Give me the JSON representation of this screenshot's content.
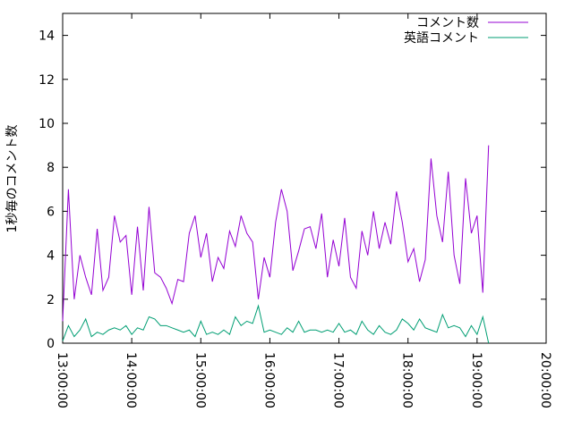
{
  "chart_data": {
    "type": "line",
    "y_label": "1秒毎のコメント数",
    "x": [
      13,
      13.083,
      13.167,
      13.25,
      13.333,
      13.417,
      13.5,
      13.583,
      13.667,
      13.75,
      13.833,
      13.917,
      14,
      14.083,
      14.167,
      14.25,
      14.333,
      14.417,
      14.5,
      14.583,
      14.667,
      14.75,
      14.833,
      14.917,
      15,
      15.083,
      15.167,
      15.25,
      15.333,
      15.417,
      15.5,
      15.583,
      15.667,
      15.75,
      15.833,
      15.917,
      16,
      16.083,
      16.167,
      16.25,
      16.333,
      16.417,
      16.5,
      16.583,
      16.667,
      16.75,
      16.833,
      16.917,
      17,
      17.083,
      17.167,
      17.25,
      17.333,
      17.417,
      17.5,
      17.583,
      17.667,
      17.75,
      17.833,
      17.917,
      18,
      18.083,
      18.167,
      18.25,
      18.333,
      18.417,
      18.5,
      18.583,
      18.667,
      18.75,
      18.833,
      18.917,
      19,
      19.083,
      19.167
    ],
    "series": [
      {
        "name": "コメント数",
        "color": "#9400d3",
        "values": [
          1.0,
          7,
          2,
          4,
          3,
          2.2,
          5.2,
          2.4,
          3,
          5.8,
          4.6,
          4.9,
          2.2,
          5.3,
          2.4,
          6.2,
          3.2,
          3,
          2.5,
          1.8,
          2.9,
          2.8,
          5,
          5.8,
          3.9,
          5,
          2.8,
          3.9,
          3.4,
          5.1,
          4.4,
          5.8,
          5,
          4.6,
          2.0,
          3.9,
          3,
          5.5,
          7,
          6,
          3.3,
          4.2,
          5.2,
          5.3,
          4.3,
          5.9,
          3,
          4.7,
          3.5,
          5.7,
          3,
          2.5,
          5.1,
          4.0,
          6.0,
          4.3,
          5.5,
          4.5,
          6.9,
          5.5,
          3.7,
          4.3,
          2.8,
          3.8,
          8.4,
          5.8,
          4.6,
          7.8,
          4,
          2.7,
          7.5,
          5,
          5.8,
          2.3,
          9.0
        ]
      },
      {
        "name": "英語コメント",
        "color": "#009e73",
        "values": [
          0.1,
          0.8,
          0.3,
          0.6,
          1.1,
          0.3,
          0.5,
          0.4,
          0.6,
          0.7,
          0.6,
          0.8,
          0.4,
          0.7,
          0.6,
          1.2,
          1.1,
          0.8,
          0.8,
          0.7,
          0.6,
          0.5,
          0.6,
          0.3,
          1.0,
          0.4,
          0.5,
          0.4,
          0.6,
          0.4,
          1.2,
          0.8,
          1.0,
          0.9,
          1.7,
          0.5,
          0.6,
          0.5,
          0.4,
          0.7,
          0.5,
          1.0,
          0.5,
          0.6,
          0.6,
          0.5,
          0.6,
          0.5,
          0.9,
          0.5,
          0.6,
          0.4,
          1.0,
          0.6,
          0.4,
          0.8,
          0.5,
          0.4,
          0.6,
          1.1,
          0.9,
          0.6,
          1.1,
          0.7,
          0.6,
          0.5,
          1.3,
          0.7,
          0.8,
          0.7,
          0.3,
          0.8,
          0.4,
          1.2,
          0
        ]
      }
    ],
    "xlim": [
      13,
      20
    ],
    "xticks": [
      {
        "value": 13,
        "label": "13:00:00"
      },
      {
        "value": 14,
        "label": "14:00:00"
      },
      {
        "value": 15,
        "label": "15:00:00"
      },
      {
        "value": 16,
        "label": "16:00:00"
      },
      {
        "value": 17,
        "label": "17:00:00"
      },
      {
        "value": 18,
        "label": "18:00:00"
      },
      {
        "value": 19,
        "label": "19:00:00"
      },
      {
        "value": 20,
        "label": "20:00:00"
      }
    ],
    "ylim": [
      0,
      15
    ],
    "yticks": [
      0,
      2,
      4,
      6,
      8,
      10,
      12,
      14
    ],
    "legend": "top-right"
  }
}
